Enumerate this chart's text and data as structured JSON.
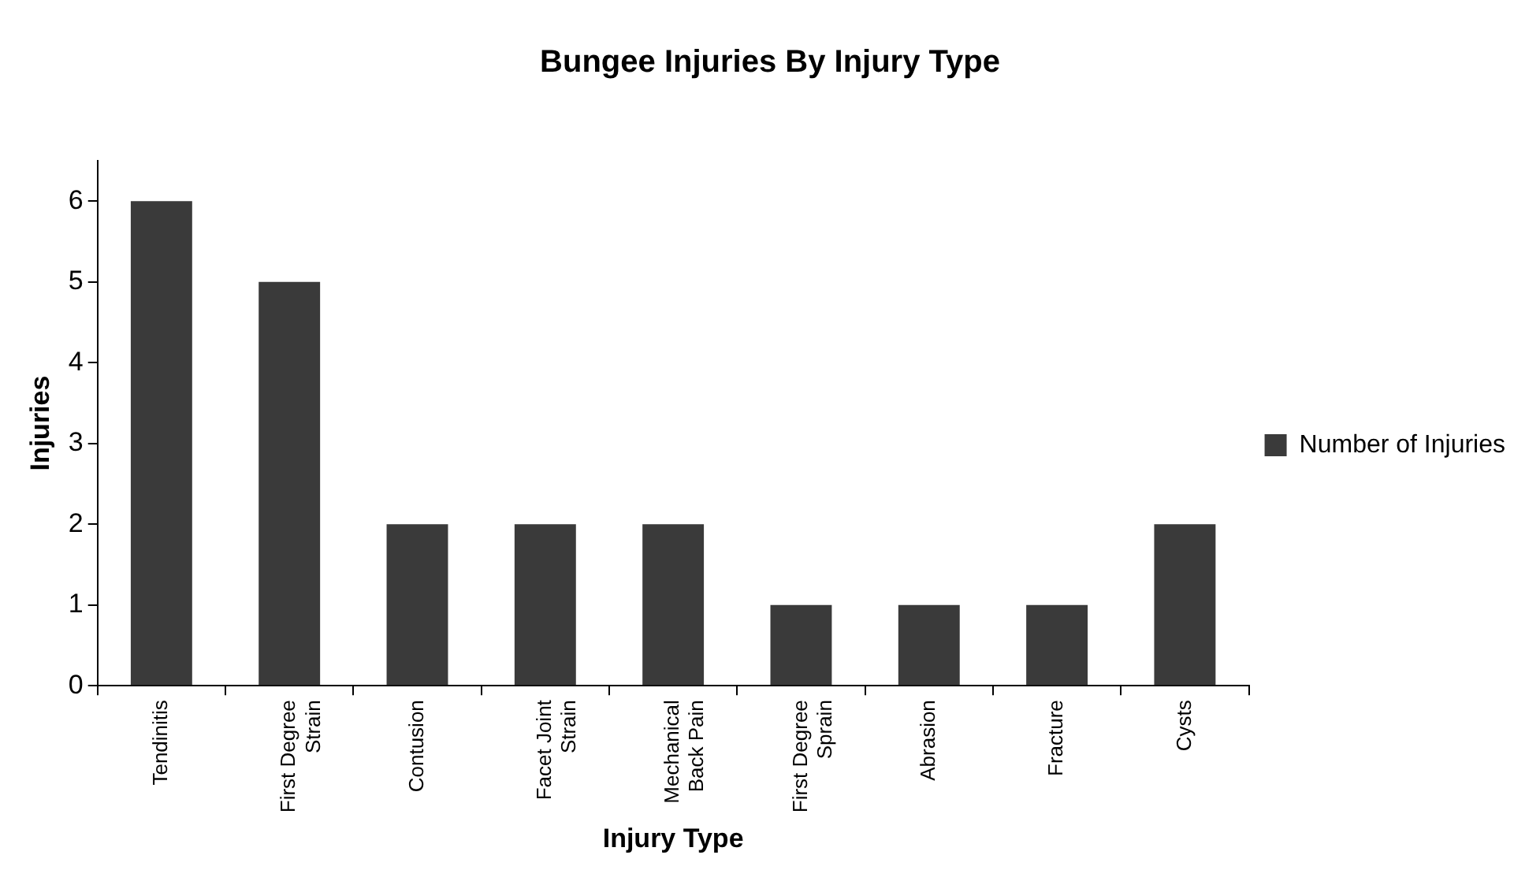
{
  "chart_data": {
    "type": "bar",
    "title": "Bungee Injuries By Injury Type",
    "xlabel": "Injury Type",
    "ylabel": "Injuries",
    "categories": [
      "Tendinitis",
      "First Degree Strain",
      "Contusion",
      "Facet Joint Strain",
      "Mechanical Back Pain",
      "First Degree Sprain",
      "Abrasion",
      "Fracture",
      "Cysts"
    ],
    "series": [
      {
        "name": "Number of Injuries",
        "color": "#3a3a3a",
        "values": [
          6,
          5,
          2,
          2,
          2,
          1,
          1,
          1,
          2
        ]
      }
    ],
    "ylim": [
      0,
      6.5
    ],
    "yticks": [
      0,
      1,
      2,
      3,
      4,
      5,
      6
    ],
    "legend": "right"
  }
}
